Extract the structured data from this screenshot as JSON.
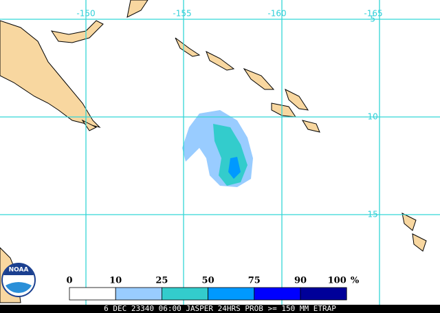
{
  "map": {
    "lon_labels": [
      "-150",
      "-155",
      "-160",
      "-165"
    ],
    "lat_labels": [
      "-5",
      "-10",
      "-15"
    ],
    "logo": "NOAA"
  },
  "legend": {
    "labels": [
      "0",
      "10",
      "25",
      "50",
      "75",
      "90",
      "100"
    ],
    "unit": "%",
    "colors": [
      "#ffffff",
      "#99ccff",
      "#33cccc",
      "#0099ff",
      "#0000ff",
      "#000099"
    ]
  },
  "footer": "6 DEC 23340 06:00 JASPER 24HRS PROB >= 150 MM ETRAP"
}
